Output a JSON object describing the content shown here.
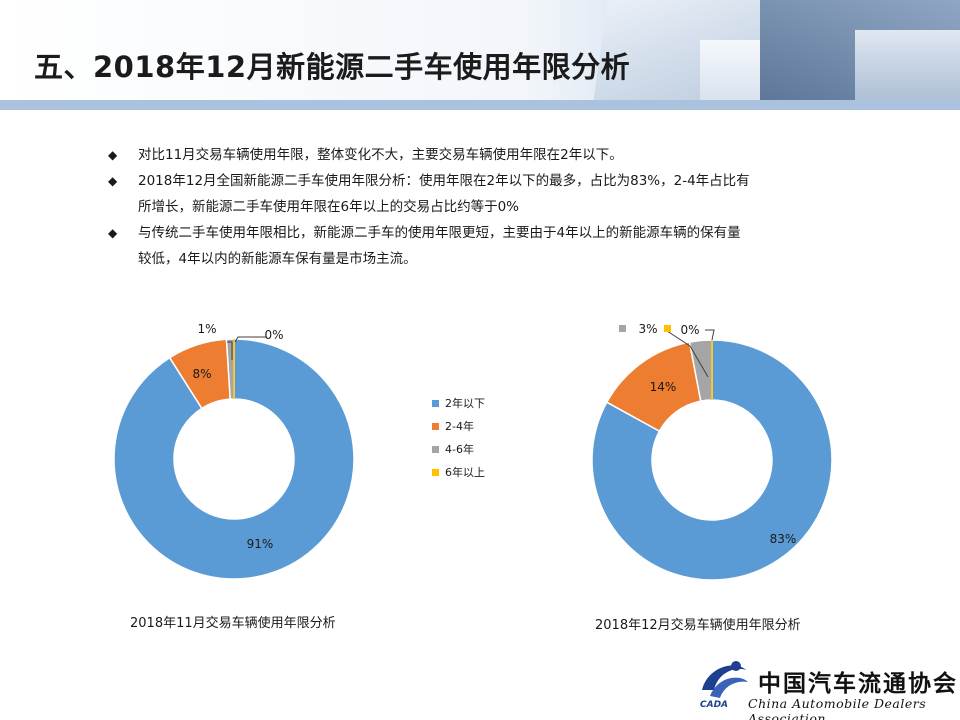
{
  "header": {
    "title": "五、2018年12月新能源二手车使用年限分析"
  },
  "bullets": [
    {
      "lines": [
        "对比11月交易车辆使用年限，整体变化不大，主要交易车辆使用年限在2年以下。"
      ]
    },
    {
      "lines": [
        "2018年12月全国新能源二手车使用年限分析：使用年限在2年以下的最多，占比为83%，2-4年占比有",
        "所增长，新能源二手车使用年限在6年以上的交易占比约等于0%"
      ]
    },
    {
      "lines": [
        "与传统二手车使用年限相比，新能源二手车的使用年限更短，主要由于4年以上的新能源车辆的保有量",
        "较低，4年以内的新能源车保有量是市场主流。"
      ]
    }
  ],
  "bullet_mark": "◆",
  "legend": [
    "2年以下",
    "2-4年",
    "4-6年",
    "6年以上"
  ],
  "colors": [
    "#5b9bd5",
    "#ed7d31",
    "#a5a5a5",
    "#ffc000"
  ],
  "chart_data": [
    {
      "type": "pie",
      "title": "2018年11月交易车辆使用年限分析",
      "categories": [
        "2年以下",
        "2-4年",
        "4-6年",
        "6年以上"
      ],
      "values": [
        91,
        8,
        1,
        0
      ],
      "labels": [
        "91%",
        "8%",
        "1%",
        "0%"
      ]
    },
    {
      "type": "pie",
      "title": "2018年12月交易车辆使用年限分析",
      "categories": [
        "2年以下",
        "2-4年",
        "4-6年",
        "6年以上"
      ],
      "values": [
        83,
        14,
        3,
        0
      ],
      "labels": [
        "83%",
        "14%",
        "3%",
        "0%"
      ]
    }
  ],
  "footer": {
    "org_cn": "中国汽车流通协会",
    "org_en": "China Automobile Dealers Association",
    "abbr": "CADA"
  }
}
